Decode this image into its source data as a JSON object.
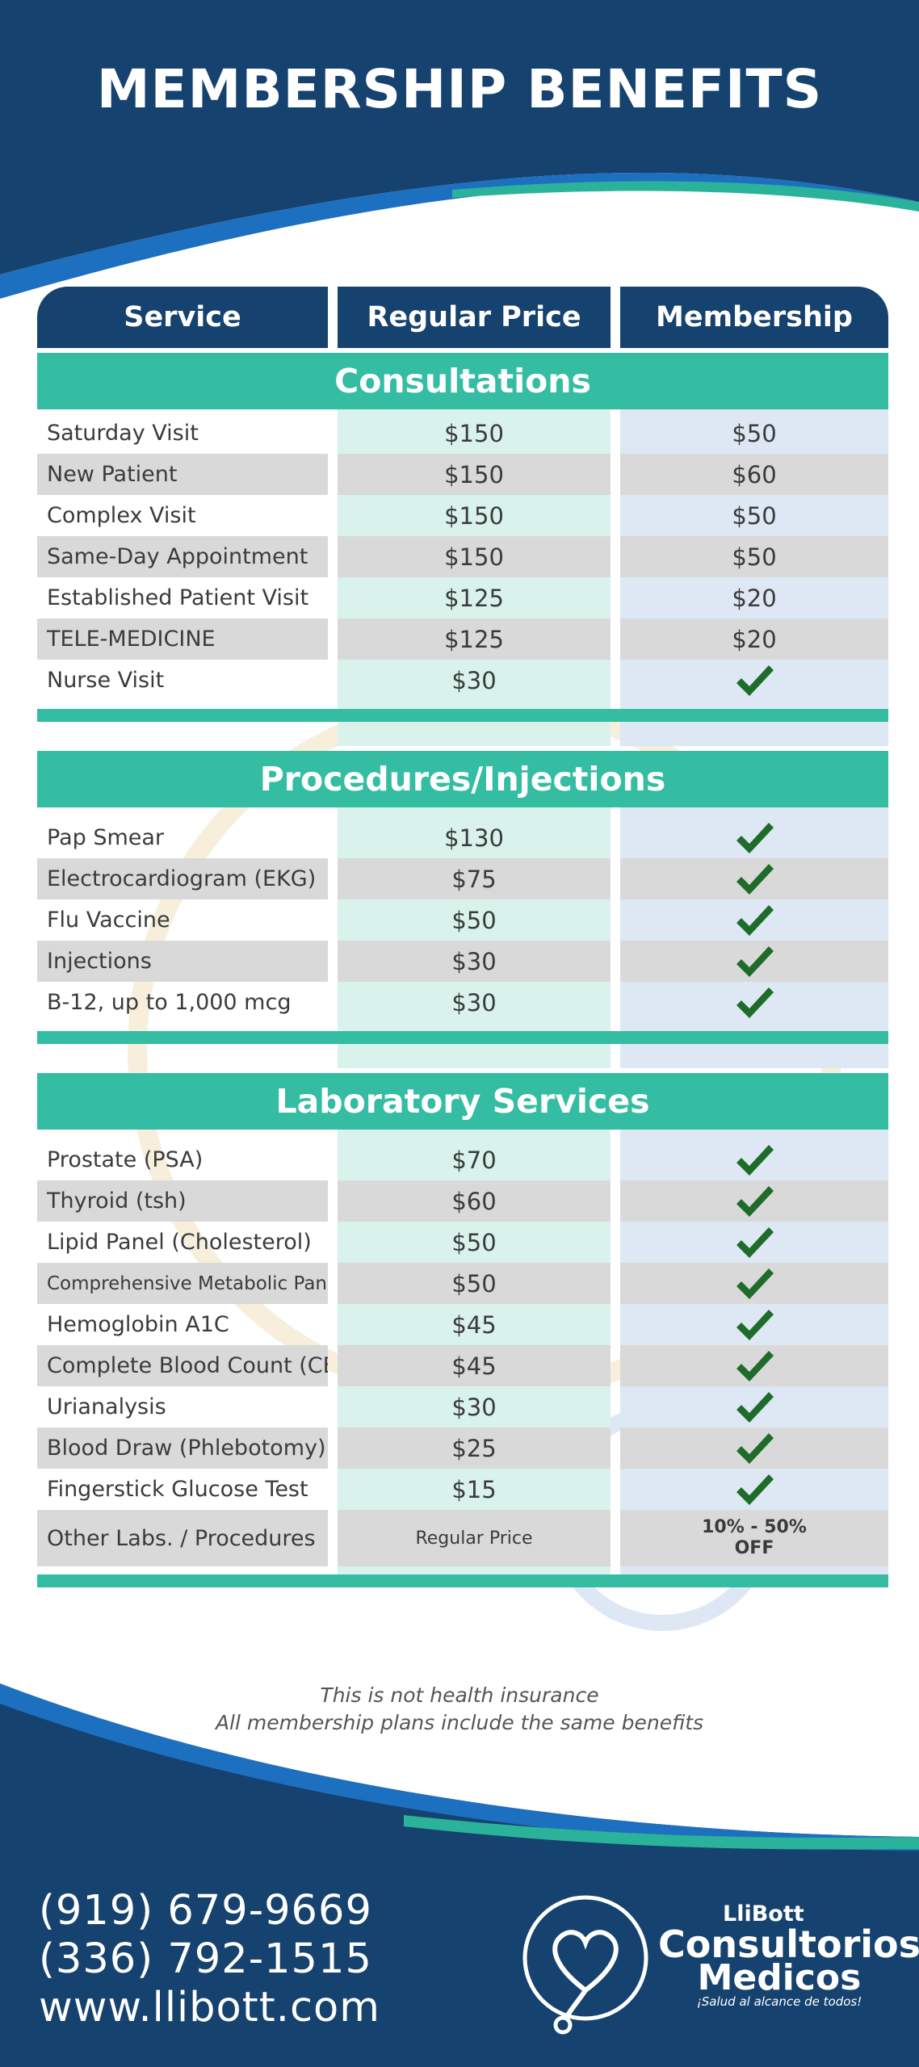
{
  "title": "MEMBERSHIP BENEFITS",
  "colors": {
    "navy": "#16426f",
    "teal": "#35bda3",
    "check": "#1e6b2a",
    "grey_row": "#d9d9d9"
  },
  "table": {
    "headers": {
      "service": "Service",
      "regular": "Regular Price",
      "membership": "Membership"
    },
    "sections": [
      {
        "name": "Consultations",
        "rows": [
          {
            "service": "Saturday Visit",
            "regular": "$150",
            "membership": "$50"
          },
          {
            "service": "New Patient",
            "regular": "$150",
            "membership": "$60"
          },
          {
            "service": "Complex Visit",
            "regular": "$150",
            "membership": "$50"
          },
          {
            "service": "Same-Day Appointment",
            "regular": "$150",
            "membership": "$50"
          },
          {
            "service": "Established Patient Visit",
            "regular": "$125",
            "membership": "$20"
          },
          {
            "service": "TELE-MEDICINE",
            "regular": "$125",
            "membership": "$20"
          },
          {
            "service": "Nurse Visit",
            "regular": "$30",
            "membership": "check-icon"
          }
        ]
      },
      {
        "name": "Procedures/Injections",
        "rows": [
          {
            "service": "Pap Smear",
            "regular": "$130",
            "membership": "check-icon"
          },
          {
            "service": "Electrocardiogram (EKG)",
            "regular": "$75",
            "membership": "check-icon"
          },
          {
            "service": "Flu Vaccine",
            "regular": "$50",
            "membership": "check-icon"
          },
          {
            "service": "Injections",
            "regular": "$30",
            "membership": "check-icon"
          },
          {
            "service": "B-12, up to 1,000 mcg",
            "regular": "$30",
            "membership": "check-icon"
          }
        ]
      },
      {
        "name": "Laboratory Services",
        "rows": [
          {
            "service": "Prostate (PSA)",
            "regular": "$70",
            "membership": "check-icon"
          },
          {
            "service": "Thyroid (tsh)",
            "regular": "$60",
            "membership": "check-icon"
          },
          {
            "service": "Lipid Panel (Cholesterol)",
            "regular": "$50",
            "membership": "check-icon"
          },
          {
            "service": "Comprehensive Metabolic Panel",
            "regular": "$50",
            "membership": "check-icon"
          },
          {
            "service": "Hemoglobin A1C",
            "regular": "$45",
            "membership": "check-icon"
          },
          {
            "service": "Complete Blood Count (CBC)",
            "regular": "$45",
            "membership": "check-icon"
          },
          {
            "service": "Urianalysis",
            "regular": "$30",
            "membership": "check-icon"
          },
          {
            "service": "Blood Draw (Phlebotomy)",
            "regular": "$25",
            "membership": "check-icon"
          },
          {
            "service": "Fingerstick Glucose Test",
            "regular": "$15",
            "membership": "check-icon"
          },
          {
            "service": "Other Labs. / Procedures",
            "regular": "Regular Price",
            "membership_line1": "10% - 50%",
            "membership_line2": "OFF"
          }
        ]
      }
    ]
  },
  "note": {
    "line1": "This is not health insurance",
    "line2": "All membership plans include the same benefits"
  },
  "contact": {
    "phone1": "(919) 679-9669",
    "phone2": "(336) 792-1515",
    "website": "www.llibott.com"
  },
  "logo": {
    "brand": "LliBott",
    "word1": "Consultorios",
    "word2": "Medicos",
    "tagline": "¡Salud al alcance de todos!"
  }
}
